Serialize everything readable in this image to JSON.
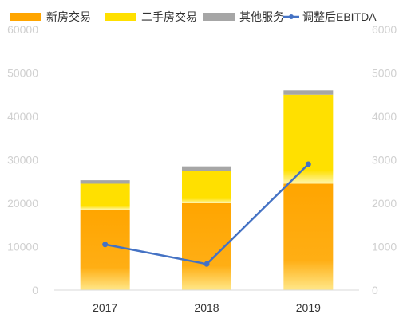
{
  "chart_data": {
    "type": "bar",
    "categories": [
      "2017",
      "2018",
      "2019"
    ],
    "series": [
      {
        "name": "新房交易",
        "kind": "bar",
        "axis": "left",
        "color": "#FFA500",
        "values": [
          18500,
          20000,
          24500
        ]
      },
      {
        "name": "二手房交易",
        "kind": "bar",
        "axis": "left",
        "color": "#FFE000",
        "values": [
          6000,
          7500,
          20500
        ]
      },
      {
        "name": "其他服务",
        "kind": "bar",
        "axis": "left",
        "color": "#A6A6A6",
        "values": [
          800,
          1000,
          1000
        ]
      },
      {
        "name": "调整后EBITDA",
        "kind": "line",
        "axis": "right",
        "color": "#4472C4",
        "values": [
          1050,
          600,
          2900
        ]
      }
    ],
    "y_left": {
      "min": 0,
      "max": 60000,
      "ticks": [
        "0",
        "10000",
        "20000",
        "30000",
        "40000",
        "50000",
        "60000"
      ]
    },
    "y_right": {
      "min": 0,
      "max": 6000,
      "ticks": [
        "0",
        "1000",
        "2000",
        "3000",
        "4000",
        "5000",
        "6000"
      ]
    },
    "legend": "top",
    "grid": false
  }
}
